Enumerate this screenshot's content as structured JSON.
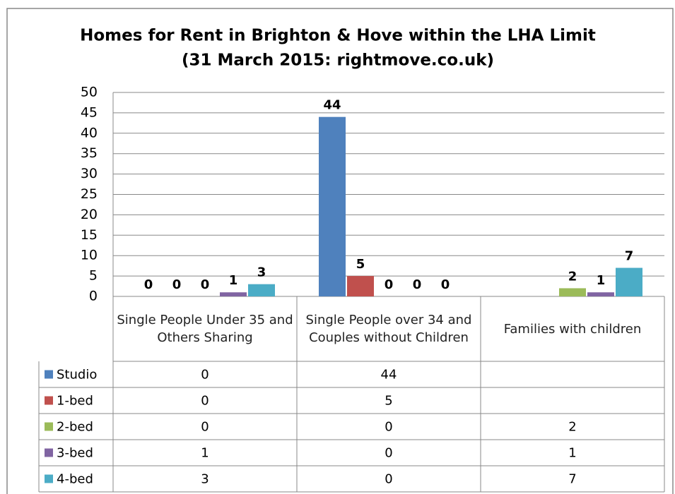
{
  "chart_data": {
    "type": "bar",
    "title": "Homes for Rent in Brighton & Hove within the LHA Limit",
    "subtitle": "(31 March 2015: rightmove.co.uk)",
    "categories": [
      "Single People Under 35 and Others Sharing",
      "Single People over 34 and Couples without Children",
      "Families with children"
    ],
    "series": [
      {
        "name": "Studio",
        "color": "#4f81bd",
        "values": [
          0,
          44,
          null
        ]
      },
      {
        "name": "1-bed",
        "color": "#c0504d",
        "values": [
          0,
          5,
          null
        ]
      },
      {
        "name": "2-bed",
        "color": "#9bbb59",
        "values": [
          0,
          0,
          2
        ]
      },
      {
        "name": "3-bed",
        "color": "#8064a2",
        "values": [
          1,
          0,
          1
        ]
      },
      {
        "name": "4-bed",
        "color": "#4bacc6",
        "values": [
          3,
          0,
          7
        ]
      }
    ],
    "ylim": [
      0,
      50
    ],
    "yticks": [
      0,
      5,
      10,
      15,
      20,
      25,
      30,
      35,
      40,
      45,
      50
    ],
    "grid": true,
    "data_table": true
  }
}
